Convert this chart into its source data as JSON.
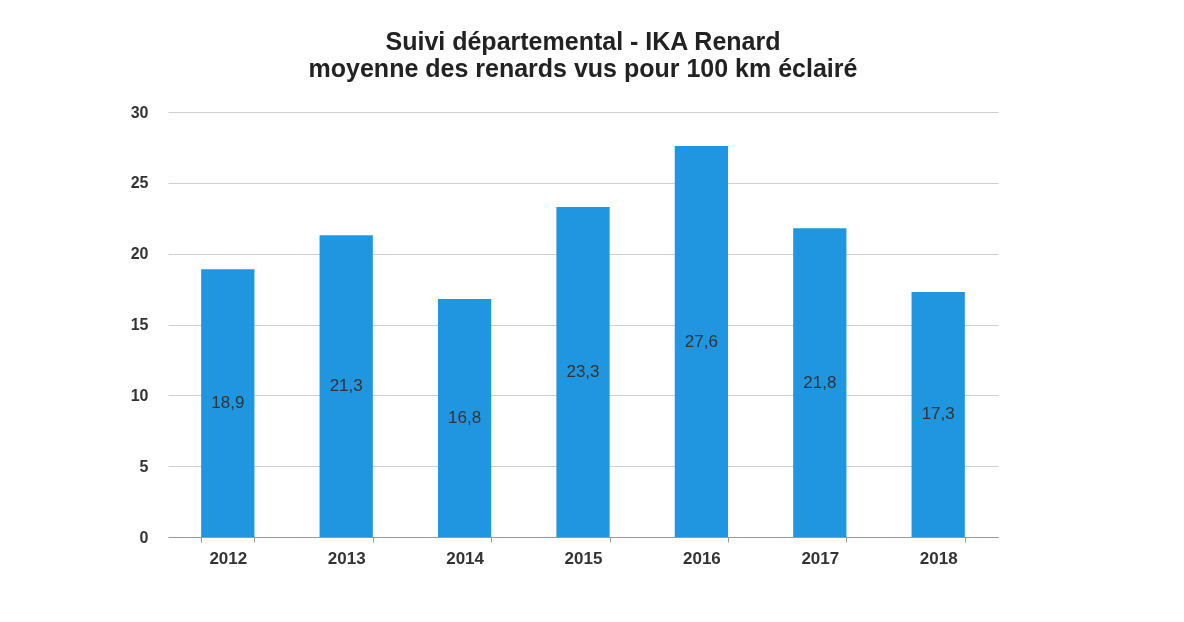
{
  "chart_data": {
    "type": "bar",
    "title": [
      "Suivi départemental - IKA Renard",
      "moyenne des renards vus pour 100 km éclairé"
    ],
    "categories": [
      "2012",
      "2013",
      "2014",
      "2015",
      "2016",
      "2017",
      "2018"
    ],
    "values": [
      18.9,
      21.3,
      16.8,
      23.3,
      27.6,
      21.8,
      17.3
    ],
    "value_labels": [
      "18,9",
      "21,3",
      "16,8",
      "23,3",
      "27,6",
      "21,8",
      "17,3"
    ],
    "color": "#2196e0",
    "ylim": [
      0,
      30
    ],
    "yticks": [
      0,
      5,
      10,
      15,
      20,
      25,
      30
    ],
    "grid": "y"
  }
}
